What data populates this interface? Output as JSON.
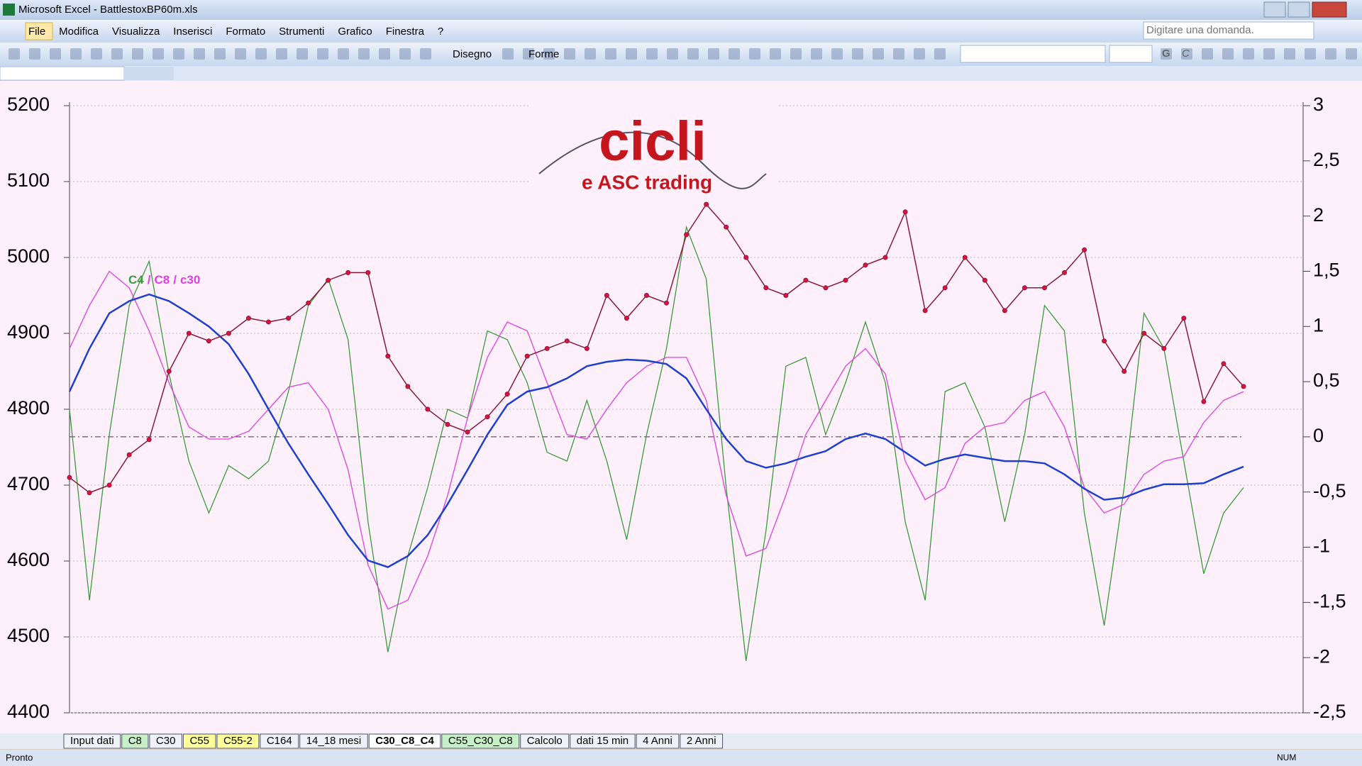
{
  "window": {
    "title": "Microsoft Excel - BattlestoxBP60m.xls"
  },
  "menu": [
    "File",
    "Modifica",
    "Visualizza",
    "Inserisci",
    "Formato",
    "Strumenti",
    "Grafico",
    "Finestra",
    "?"
  ],
  "help_box": "Digitare una domanda.",
  "toolbar": {
    "drawing": "Disegno",
    "shapes": "Forme",
    "bold": "G",
    "italic": "C"
  },
  "tabs": [
    {
      "label": "Input dati"
    },
    {
      "label": "C8",
      "color": "#c8f0c8"
    },
    {
      "label": "C30"
    },
    {
      "label": "C55",
      "color": "#ffff99"
    },
    {
      "label": "C55-2",
      "color": "#ffff99"
    },
    {
      "label": "C164"
    },
    {
      "label": "14_18 mesi"
    },
    {
      "label": "C30_C8_C4",
      "active": true
    },
    {
      "label": "C55_C30_C8",
      "color": "#c8f0c8"
    },
    {
      "label": "Calcolo"
    },
    {
      "label": "dati 15 min"
    },
    {
      "label": "4 Anni"
    },
    {
      "label": "2 Anni"
    }
  ],
  "status": {
    "left": "Pronto",
    "num": "NUM"
  },
  "logo": {
    "title": "cicli",
    "subtitle": "e ASC trading"
  },
  "chart_data": {
    "type": "line",
    "legend_separator": "/",
    "ylim": [
      4400,
      5200
    ],
    "yticks": [
      4400,
      4500,
      4600,
      4700,
      4800,
      4900,
      5000,
      5100,
      5200
    ],
    "y2lim": [
      -2.5,
      3
    ],
    "y2ticks": [
      {
        "value": -2.5,
        "label": "-2,5"
      },
      -2,
      {
        "value": -1.5,
        "label": "-1,5"
      },
      -1,
      {
        "value": -0.5,
        "label": "-0,5"
      },
      0,
      {
        "value": 0.5,
        "label": "0,5"
      },
      1,
      {
        "value": 1.5,
        "label": "1,5"
      },
      2,
      {
        "value": 2.5,
        "label": "2,5"
      },
      3
    ],
    "price": {
      "color": "#8b1a3a",
      "marker_color": "#e0103c",
      "values": [
        4710,
        4690,
        4700,
        4740,
        4760,
        4850,
        4900,
        4890,
        4900,
        4920,
        4915,
        4920,
        4940,
        4970,
        4980,
        4980,
        4870,
        4830,
        4800,
        4780,
        4770,
        4790,
        4820,
        4870,
        4880,
        4890,
        4880,
        4950,
        4920,
        4950,
        4940,
        5030,
        5070,
        5040,
        5000,
        4960,
        4950,
        4970,
        4960,
        4970,
        4990,
        5000,
        5060,
        4930,
        4960,
        5000,
        4970,
        4930,
        4960,
        4960,
        4980,
        5010,
        4890,
        4850,
        4900,
        4880,
        4920,
        4810,
        4860,
        4830
      ]
    },
    "series": [
      {
        "name": "C4",
        "color": "#3c9a3c",
        "axis": "y2",
        "values": [
          0.25,
          -1.48,
          0.02,
          1.19,
          1.59,
          0.57,
          -0.22,
          -0.69,
          -0.26,
          -0.38,
          -0.22,
          0.41,
          1.19,
          1.43,
          0.88,
          -0.77,
          -1.95,
          -1.08,
          -0.46,
          0.25,
          0.17,
          0.96,
          0.88,
          0.49,
          -0.14,
          -0.22,
          0.33,
          -0.22,
          -0.93,
          0.02,
          0.8,
          1.9,
          1.43,
          -0.46,
          -2.03,
          -0.85,
          0.64,
          0.72,
          0.02,
          0.49,
          1.04,
          0.49,
          -0.77,
          -1.48,
          0.41,
          0.49,
          0.09,
          -0.77,
          0.02,
          1.19,
          0.96,
          -0.69,
          -1.71,
          -0.46,
          1.12,
          0.8,
          -0.22,
          -1.24,
          -0.69,
          -0.46
        ]
      },
      {
        "name": "C8",
        "color": "#e040e0",
        "axis": "y2",
        "values": [
          0.8,
          1.19,
          1.5,
          1.35,
          0.96,
          0.49,
          0.09,
          -0.02,
          -0.02,
          0.05,
          0.25,
          0.45,
          0.49,
          0.25,
          -0.3,
          -1.16,
          -1.56,
          -1.48,
          -1.08,
          -0.53,
          0.17,
          0.72,
          1.04,
          0.96,
          0.49,
          0.02,
          -0.02,
          0.25,
          0.49,
          0.64,
          0.72,
          0.72,
          0.33,
          -0.53,
          -1.08,
          -1.01,
          -0.53,
          0.02,
          0.33,
          0.64,
          0.8,
          0.57,
          -0.22,
          -0.57,
          -0.46,
          -0.06,
          0.09,
          0.13,
          0.33,
          0.41,
          0.09,
          -0.46,
          -0.69,
          -0.61,
          -0.34,
          -0.22,
          -0.18,
          0.13,
          0.33,
          0.41
        ]
      },
      {
        "name": "c30",
        "color": "#1f3fd0",
        "axis": "y2",
        "values": [
          0.41,
          0.8,
          1.12,
          1.23,
          1.29,
          1.23,
          1.12,
          1.0,
          0.84,
          0.57,
          0.25,
          -0.06,
          -0.34,
          -0.61,
          -0.89,
          -1.12,
          -1.18,
          -1.08,
          -0.89,
          -0.61,
          -0.3,
          0.02,
          0.29,
          0.41,
          0.45,
          0.53,
          0.64,
          0.68,
          0.7,
          0.69,
          0.66,
          0.53,
          0.25,
          -0.02,
          -0.22,
          -0.28,
          -0.24,
          -0.18,
          -0.13,
          -0.02,
          0.03,
          -0.02,
          -0.14,
          -0.26,
          -0.2,
          -0.16,
          -0.19,
          -0.22,
          -0.22,
          -0.24,
          -0.34,
          -0.47,
          -0.57,
          -0.55,
          -0.48,
          -0.43,
          -0.43,
          -0.42,
          -0.34,
          -0.27
        ]
      }
    ]
  }
}
